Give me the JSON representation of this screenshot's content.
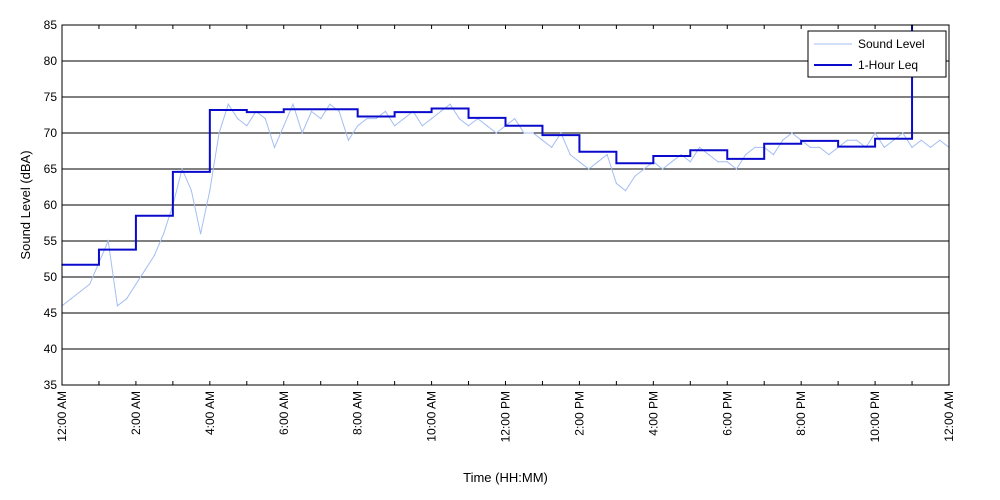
{
  "chart_data": {
    "type": "line",
    "title": "",
    "xlabel": "Time (HH:MM)",
    "ylabel": "Sound Level (dBA)",
    "xlim": [
      0,
      24
    ],
    "ylim": [
      35,
      85
    ],
    "y_ticks": [
      35,
      40,
      45,
      50,
      55,
      60,
      65,
      70,
      75,
      80,
      85
    ],
    "x_tick_positions": [
      0,
      2,
      4,
      6,
      8,
      10,
      12,
      14,
      16,
      18,
      20,
      22,
      24
    ],
    "x_tick_labels": [
      "12:00 AM",
      "2:00 AM",
      "4:00 AM",
      "6:00 AM",
      "8:00 AM",
      "10:00 AM",
      "12:00 PM",
      "2:00 PM",
      "4:00 PM",
      "6:00 PM",
      "8:00 PM",
      "10:00 PM",
      "12:00 AM"
    ],
    "grid": "horizontal",
    "legend_position": "top-right",
    "series": [
      {
        "name": "Sound Level",
        "style": "thin-line",
        "color": "#A4BEF3",
        "x": [
          0,
          0.25,
          0.5,
          0.75,
          1,
          1.25,
          1.5,
          1.75,
          2,
          2.25,
          2.5,
          2.75,
          3,
          3.25,
          3.5,
          3.75,
          4,
          4.25,
          4.5,
          4.75,
          5,
          5.25,
          5.5,
          5.75,
          6,
          6.25,
          6.5,
          6.75,
          7,
          7.25,
          7.5,
          7.75,
          8,
          8.25,
          8.5,
          8.75,
          9,
          9.25,
          9.5,
          9.75,
          10,
          10.25,
          10.5,
          10.75,
          11,
          11.25,
          11.5,
          11.75,
          12,
          12.25,
          12.5,
          12.75,
          13,
          13.25,
          13.5,
          13.75,
          14,
          14.25,
          14.5,
          14.75,
          15,
          15.25,
          15.5,
          15.75,
          16,
          16.25,
          16.5,
          16.75,
          17,
          17.25,
          17.5,
          17.75,
          18,
          18.25,
          18.5,
          18.75,
          19,
          19.25,
          19.5,
          19.75,
          20,
          20.25,
          20.5,
          20.75,
          21,
          21.25,
          21.5,
          21.75,
          22,
          22.25,
          22.5,
          22.75,
          23,
          23.25,
          23.5,
          23.75,
          24
        ],
        "values": [
          46,
          47,
          48,
          49,
          52,
          55,
          46,
          47,
          49,
          51,
          53,
          56,
          60,
          65,
          62,
          56,
          62,
          70,
          74,
          72,
          71,
          73,
          72,
          68,
          71,
          74,
          70,
          73,
          72,
          74,
          73,
          69,
          71,
          72,
          72,
          73,
          71,
          72,
          73,
          71,
          72,
          73,
          74,
          72,
          71,
          72,
          71,
          70,
          71,
          72,
          70,
          70,
          69,
          68,
          70,
          67,
          66,
          65,
          66,
          67,
          63,
          62,
          64,
          65,
          66,
          65,
          66,
          67,
          66,
          68,
          67,
          66,
          66,
          65,
          67,
          68,
          68,
          67,
          69,
          70,
          69,
          68,
          68,
          67,
          68,
          69,
          69,
          68,
          70,
          68,
          69,
          70,
          68,
          69,
          68,
          69,
          68
        ]
      },
      {
        "name": "1-Hour Leq",
        "style": "step",
        "color": "#0A0ACC",
        "x": [
          0,
          1,
          2,
          3,
          4,
          5,
          6,
          7,
          8,
          9,
          10,
          11,
          12,
          13,
          14,
          15,
          16,
          17,
          18,
          19,
          20,
          21,
          22,
          23
        ],
        "values": [
          51.7,
          53.8,
          58.5,
          64.6,
          73.2,
          72.9,
          73.3,
          73.3,
          72.3,
          72.9,
          73.4,
          72.1,
          71.0,
          69.7,
          67.4,
          65.8,
          66.8,
          67.6,
          66.4,
          68.5,
          68.9,
          68.1,
          69.2,
          85.0
        ]
      }
    ]
  }
}
